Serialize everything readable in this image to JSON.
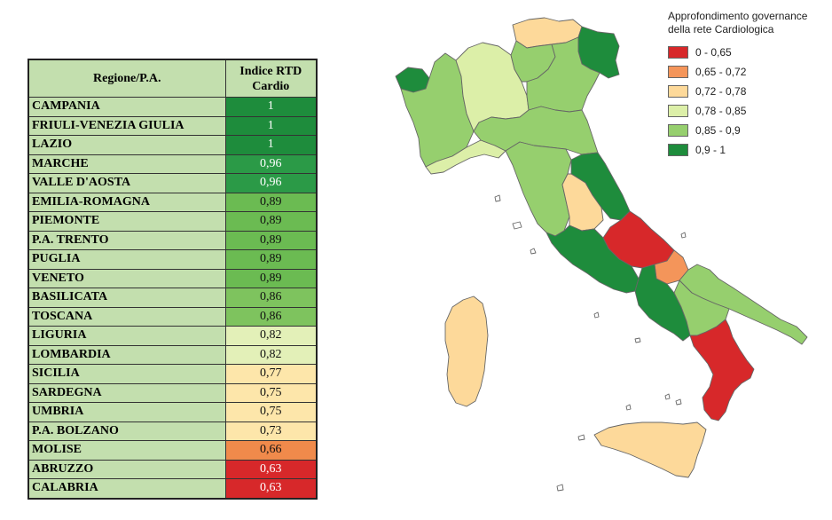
{
  "table": {
    "header_region": "Regione/P.A.",
    "header_index_line1": "Indice RTD",
    "header_index_line2": "Cardio",
    "rows": [
      {
        "region": "CAMPANIA",
        "value": "1",
        "class": "0,9 - 1"
      },
      {
        "region": "FRIULI-VENEZIA GIULIA",
        "value": "1",
        "class": "0,9 - 1"
      },
      {
        "region": "LAZIO",
        "value": "1",
        "class": "0,9 - 1"
      },
      {
        "region": "MARCHE",
        "value": "0,96",
        "class": "0,9 - 1"
      },
      {
        "region": "VALLE D'AOSTA",
        "value": "0,96",
        "class": "0,9 - 1"
      },
      {
        "region": "EMILIA-ROMAGNA",
        "value": "0,89",
        "class": "0,85 - 0,9"
      },
      {
        "region": "PIEMONTE",
        "value": "0,89",
        "class": "0,85 - 0,9"
      },
      {
        "region": "P.A. TRENTO",
        "value": "0,89",
        "class": "0,85 - 0,9"
      },
      {
        "region": "PUGLIA",
        "value": "0,89",
        "class": "0,85 - 0,9"
      },
      {
        "region": "VENETO",
        "value": "0,89",
        "class": "0,85 - 0,9"
      },
      {
        "region": "BASILICATA",
        "value": "0,86",
        "class": "0,85 - 0,9"
      },
      {
        "region": "TOSCANA",
        "value": "0,86",
        "class": "0,85 - 0,9"
      },
      {
        "region": "LIGURIA",
        "value": "0,82",
        "class": "0,78 - 0,85"
      },
      {
        "region": "LOMBARDIA",
        "value": "0,82",
        "class": "0,78 - 0,85"
      },
      {
        "region": "SICILIA",
        "value": "0,77",
        "class": "0,72 - 0,78"
      },
      {
        "region": "SARDEGNA",
        "value": "0,75",
        "class": "0,72 - 0,78"
      },
      {
        "region": "UMBRIA",
        "value": "0,75",
        "class": "0,72 - 0,78"
      },
      {
        "region": "P.A. BOLZANO",
        "value": "0,73",
        "class": "0,72 - 0,78"
      },
      {
        "region": "MOLISE",
        "value": "0,66",
        "class": "0,65 - 0,72"
      },
      {
        "region": "ABRUZZO",
        "value": "0,63",
        "class": "0 - 0,65"
      },
      {
        "region": "CALABRIA",
        "value": "0,63",
        "class": "0 - 0,65"
      }
    ]
  },
  "table_cell_colors": {
    "1": "#1e8c3c",
    "0,96": "#2b9a47",
    "0,89": "#6bbb52",
    "0,86": "#7ec35e",
    "0,82": "#e3f0b8",
    "0,77": "#fde6aa",
    "0,75": "#fde6aa",
    "0,73": "#fde6aa",
    "0,66": "#f08a4b",
    "0,63": "#d7282a"
  },
  "legend": {
    "title_line1": "Approfondimento governance",
    "title_line2": "della rete Cardiologica",
    "classes": [
      {
        "label": "0 - 0,65",
        "color": "#d7282a"
      },
      {
        "label": "0,65 - 0,72",
        "color": "#f4955a"
      },
      {
        "label": "0,72 - 0,78",
        "color": "#fdd99a"
      },
      {
        "label": "0,78 - 0,85",
        "color": "#dcefa8"
      },
      {
        "label": "0,85 - 0,9",
        "color": "#96cf6e"
      },
      {
        "label": "0,9 - 1",
        "color": "#1e8c3c"
      }
    ]
  }
}
